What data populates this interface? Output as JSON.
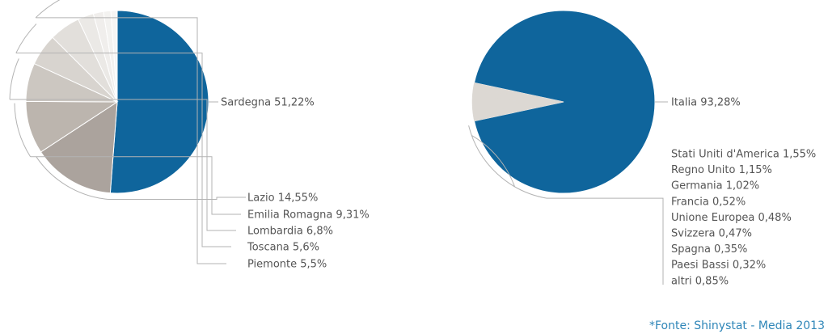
{
  "chart_data": [
    {
      "type": "pie",
      "slices": [
        {
          "label": "Sardegna 51,22%",
          "value": 51.22,
          "color": "#0f659c"
        },
        {
          "label": "Lazio 14,55%",
          "value": 14.55,
          "color": "#aba39d"
        },
        {
          "label": "Emilia Romagna 9,31%",
          "value": 9.31,
          "color": "#bcb5ae"
        },
        {
          "label": "Lombardia 6,8%",
          "value": 6.8,
          "color": "#ccc7c1"
        },
        {
          "label": "Toscana 5,6%",
          "value": 5.6,
          "color": "#d8d4cf"
        },
        {
          "label": "Piemonte 5,5%",
          "value": 5.5,
          "color": "#e2dfdb"
        },
        {
          "value": 2.8,
          "color": "#ebe9e6"
        },
        {
          "value": 1.8,
          "color": "#f0eeec"
        },
        {
          "value": 1.3,
          "color": "#f3f2f0"
        },
        {
          "value": 1.12,
          "color": "#f6f5f4"
        }
      ]
    },
    {
      "type": "pie",
      "slices": [
        {
          "label": "Italia 93,28%",
          "value": 93.28,
          "color": "#0f659c"
        },
        {
          "label": "Stati Uniti d'America 1,55%",
          "value": 1.55,
          "color": "#dcd8d3"
        },
        {
          "label": "Regno Unito 1,15%",
          "value": 1.15,
          "color": "#dcd8d3"
        },
        {
          "label": "Germania 1,02%",
          "value": 1.02,
          "color": "#dcd8d3"
        },
        {
          "label": "Francia 0,52%",
          "value": 0.52,
          "color": "#dcd8d3"
        },
        {
          "label": "Unione Europea 0,48%",
          "value": 0.48,
          "color": "#dcd8d3"
        },
        {
          "label": "Svizzera 0,47%",
          "value": 0.47,
          "color": "#dcd8d3"
        },
        {
          "label": "Spagna 0,35%",
          "value": 0.35,
          "color": "#dcd8d3"
        },
        {
          "label": "Paesi Bassi 0,32%",
          "value": 0.32,
          "color": "#dcd8d3"
        },
        {
          "label": "altri 0,85%",
          "value": 0.85,
          "color": "#dcd8d3"
        }
      ]
    }
  ],
  "source_note": "*Fonte: Shinystat - Media 2013",
  "colors": {
    "accent": "#0f659c",
    "leader": "#b3b3b3",
    "label": "#555555",
    "source": "#2f86b8"
  }
}
